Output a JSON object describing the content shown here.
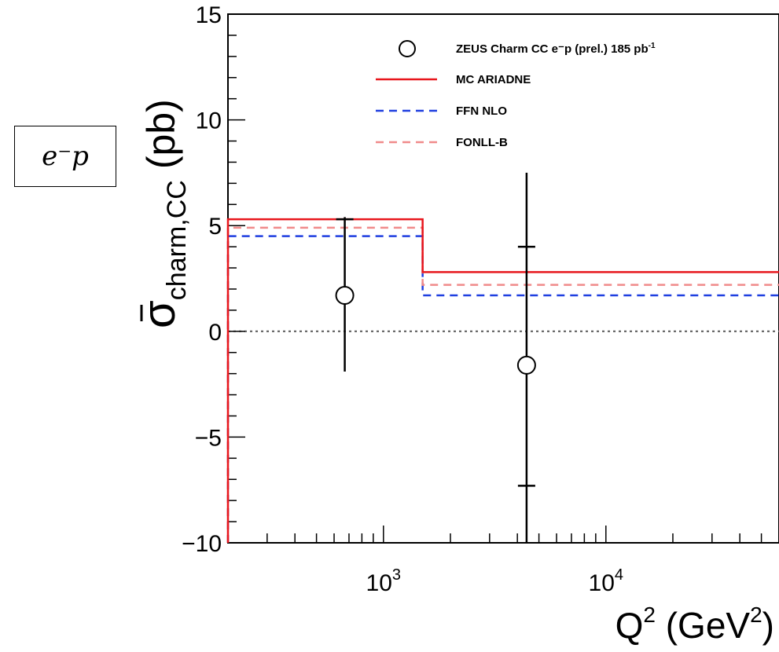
{
  "process_box": "e⁻p",
  "chart_data": {
    "type": "scatter",
    "title": "",
    "xlabel_main": "Q",
    "xlabel_sup": "2",
    "xlabel_unit": " (GeV",
    "xlabel_unit_sup": "2",
    "xlabel_close": ")",
    "ylabel_symbol": "σ",
    "ylabel_sub": "charm,CC",
    "ylabel_unit": "(pb)",
    "x_scale": "log",
    "xlim": [
      200,
      60000
    ],
    "ylim": [
      -10,
      15
    ],
    "y_ticks": [
      {
        "value": -10,
        "label": "−10"
      },
      {
        "value": -5,
        "label": "−5"
      },
      {
        "value": 0,
        "label": "0"
      },
      {
        "value": 5,
        "label": "5"
      },
      {
        "value": 10,
        "label": "10"
      },
      {
        "value": 15,
        "label": "15"
      }
    ],
    "x_ticks": [
      {
        "value": 1000,
        "base": "10",
        "exp": "3"
      },
      {
        "value": 10000,
        "base": "10",
        "exp": "4"
      }
    ],
    "zero_line": true,
    "legend_position": "top-right",
    "series": [
      {
        "name": "ZEUS Charm CC e⁻p (prel.) 185 pb",
        "name_sup": "-1",
        "kind": "points",
        "marker": "open-circle",
        "color": "#000000",
        "points": [
          {
            "x": 670,
            "y": 1.7,
            "stat_lo": 1.7,
            "stat_hi": 5.3,
            "tot_lo": -1.9,
            "tot_hi": 5.4
          },
          {
            "x": 4400,
            "y": -1.6,
            "stat_lo": -7.3,
            "stat_hi": 4.0,
            "tot_lo": -10.0,
            "tot_hi": 7.5
          }
        ]
      },
      {
        "name": "MC ARIADNE",
        "kind": "step",
        "color": "#e8161c",
        "dash": "solid",
        "bins": [
          [
            200,
            1500,
            5.3
          ],
          [
            1500,
            60000,
            2.8
          ]
        ]
      },
      {
        "name": "FFN NLO",
        "kind": "step",
        "color": "#1f3fe0",
        "dash": "dashed",
        "bins": [
          [
            200,
            1500,
            4.5
          ],
          [
            1500,
            60000,
            1.7
          ]
        ]
      },
      {
        "name": "FONLL-B",
        "kind": "step",
        "color": "#f08a8a",
        "dash": "dashed",
        "bins": [
          [
            200,
            1500,
            4.9
          ],
          [
            1500,
            60000,
            2.2
          ]
        ]
      }
    ]
  }
}
